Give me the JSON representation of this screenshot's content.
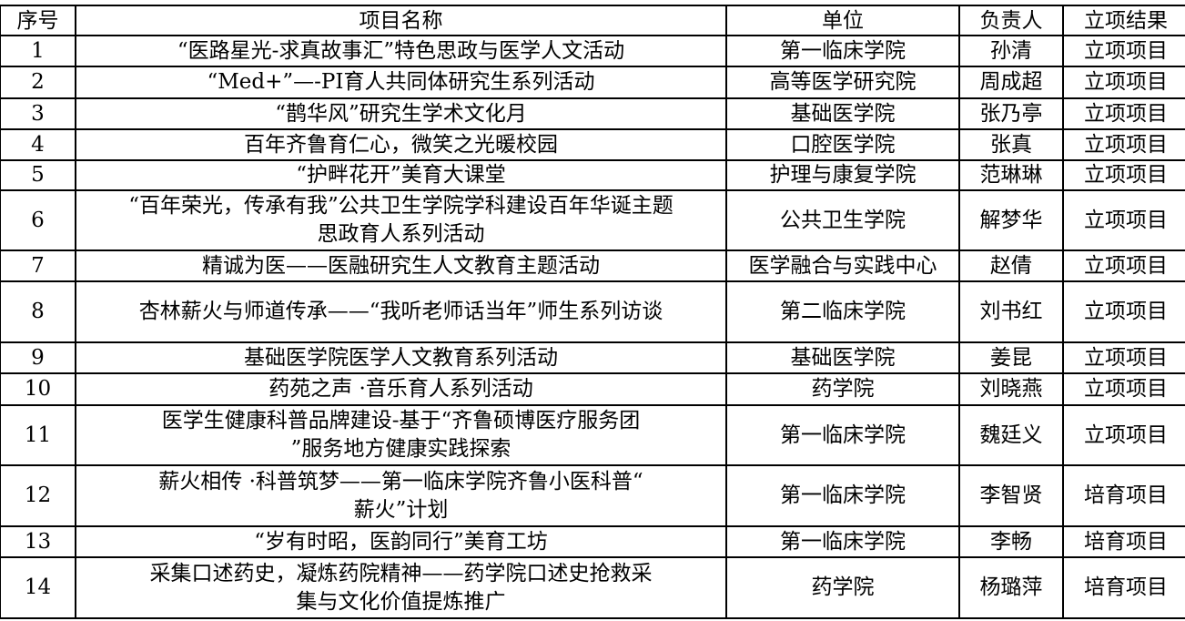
{
  "headers": [
    "序号",
    "项目名称",
    "单位",
    "负责人",
    "立项结果"
  ],
  "rows": [
    {
      "no": "1",
      "name": "“医路星光-求真故事汇”特色思政与医学人文活动",
      "unit": "第一临床学院",
      "leader": "孙清",
      "result": "立项项目"
    },
    {
      "no": "2",
      "name": "“Med+”—-PI育人共同体研究生系列活动",
      "unit": "高等医学研究院",
      "leader": "周成超",
      "result": "立项项目"
    },
    {
      "no": "3",
      "name": "“鹊华风”研究生学术文化月",
      "unit": "基础医学院",
      "leader": "张乃亭",
      "result": "立项项目"
    },
    {
      "no": "4",
      "name": "百年齐鲁育仁心，微笑之光暖校园",
      "unit": "口腔医学院",
      "leader": "张真",
      "result": "立项项目"
    },
    {
      "no": "5",
      "name": "“护畔花开”美育大课堂",
      "unit": "护理与康复学院",
      "leader": "范琳琳",
      "result": "立项项目"
    },
    {
      "no": "6",
      "name": "“百年荣光，传承有我”公共卫生学院学科建设百年华诞主题\n思政育人系列活动",
      "unit": "公共卫生学院",
      "leader": "解梦华",
      "result": "立项项目"
    },
    {
      "no": "7",
      "name": "精诚为医——医融研究生人文教育主题活动",
      "unit": "医学融合与实践中心",
      "leader": "赵倩",
      "result": "立项项目"
    },
    {
      "no": "8",
      "name": "杏林薪火与师道传承——“我听老师话当年”师生系列访谈",
      "unit": "第二临床学院",
      "leader": "刘书红",
      "result": "立项项目"
    },
    {
      "no": "9",
      "name": "基础医学院医学人文教育系列活动",
      "unit": "基础医学院",
      "leader": "姜昆",
      "result": "立项项目"
    },
    {
      "no": "10",
      "name": "药苑之声 ·音乐育人系列活动",
      "unit": "药学院",
      "leader": "刘晓燕",
      "result": "立项项目"
    },
    {
      "no": "11",
      "name": "医学生健康科普品牌建设-基于“齐鲁硕博医疗服务团\n”服务地方健康实践探索",
      "unit": "第一临床学院",
      "leader": "魏廷义",
      "result": "立项项目"
    },
    {
      "no": "12",
      "name": "薪火相传 ·科普筑梦——第一临床学院齐鲁小医科普“\n薪火”计划",
      "unit": "第一临床学院",
      "leader": "李智贤",
      "result": "培育项目"
    },
    {
      "no": "13",
      "name": "“岁有时昭，医韵同行”美育工坊",
      "unit": "第一临床学院",
      "leader": "李畅",
      "result": "培育项目"
    },
    {
      "no": "14",
      "name": "采集口述药史，凝炼药院精神——药学院口述史抢救采\n集与文化价值提炼推广",
      "unit": "药学院",
      "leader": "杨璐萍",
      "result": "培育项目"
    }
  ]
}
